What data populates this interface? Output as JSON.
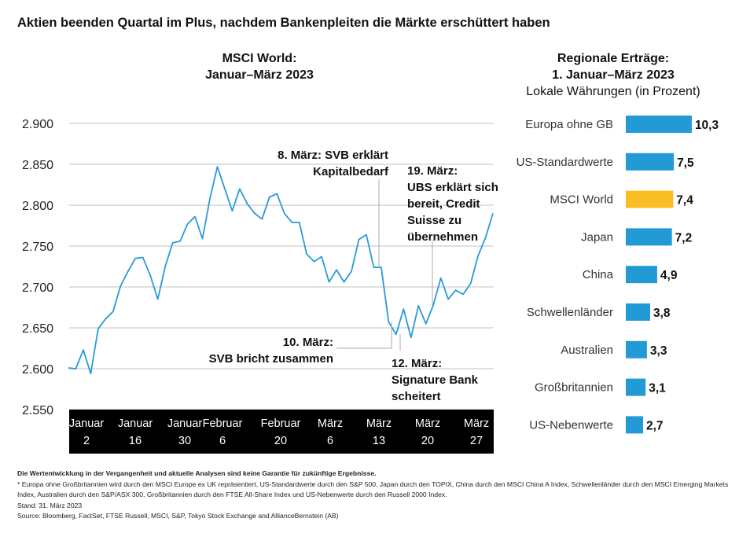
{
  "title": "Aktien beenden Quartal im Plus, nachdem Bankenpleiten die Märkte erschüttert haben",
  "chart_data": [
    {
      "type": "line",
      "title": "MSCI World:",
      "subtitle": "Januar–März 2023",
      "ylim": [
        2550,
        2900
      ],
      "yticks": [
        2900,
        2850,
        2800,
        2750,
        2700,
        2650,
        2600,
        2550
      ],
      "ytick_labels": [
        "2.900",
        "2.850",
        "2.800",
        "2.750",
        "2.700",
        "2.650",
        "2.600",
        "2.550"
      ],
      "xtick_labels": [
        [
          "Januar",
          "2"
        ],
        [
          "Januar",
          "16"
        ],
        [
          "Januar",
          "30"
        ],
        [
          "Februar",
          "6"
        ],
        [
          "Februar",
          "20"
        ],
        [
          "März",
          "6"
        ],
        [
          "März",
          "13"
        ],
        [
          "März",
          "20"
        ],
        [
          "März",
          "27"
        ]
      ],
      "grid": true,
      "color": "#2a9ad8",
      "values": [
        2601,
        2600,
        2623,
        2594,
        2649,
        2661,
        2670,
        2701,
        2719,
        2735,
        2736,
        2714,
        2685,
        2725,
        2754,
        2756,
        2777,
        2786,
        2759,
        2808,
        2847,
        2820,
        2793,
        2820,
        2802,
        2790,
        2783,
        2810,
        2814,
        2790,
        2779,
        2779,
        2740,
        2731,
        2737,
        2706,
        2721,
        2706,
        2719,
        2758,
        2764,
        2724,
        2724,
        2657,
        2642,
        2673,
        2638,
        2677,
        2655,
        2678,
        2711,
        2685,
        2696,
        2691,
        2704,
        2738,
        2760,
        2790
      ],
      "annotations": [
        {
          "lines": [
            "8. März: SVB erklärt",
            "Kapitalbedarf"
          ]
        },
        {
          "lines": [
            "10. März:",
            "SVB bricht zusammen"
          ]
        },
        {
          "lines": [
            "12. März:",
            "Signature Bank",
            "scheitert"
          ]
        },
        {
          "lines": [
            "19. März:",
            "UBS erklärt sich",
            "bereit, Credit",
            "Suisse zu",
            "übernehmen"
          ]
        }
      ]
    },
    {
      "type": "bar",
      "orientation": "horizontal",
      "title": "Regionale Erträge:",
      "subtitle": "1. Januar–März 2023",
      "unit_note": "Lokale Währungen (in Prozent)",
      "categories": [
        "Europa ohne GB",
        "US-Standardwerte",
        "MSCI World",
        "Japan",
        "China",
        "Schwellenländer",
        "Australien",
        "Großbritannien",
        "US-Nebenwerte"
      ],
      "values": [
        10.3,
        7.5,
        7.4,
        7.2,
        4.9,
        3.8,
        3.3,
        3.1,
        2.7
      ],
      "value_labels": [
        "10,3",
        "7,5",
        "7,4",
        "7,2",
        "4,9",
        "3,8",
        "3,3",
        "3,1",
        "2,7"
      ],
      "colors": [
        "#229ad6",
        "#229ad6",
        "#fbbd25",
        "#229ad6",
        "#229ad6",
        "#229ad6",
        "#229ad6",
        "#229ad6",
        "#229ad6"
      ]
    }
  ],
  "footer": {
    "disclaimer": "Die Wertentwicklung in der Vergangenheit und aktuelle Analysen sind keine Garantie für zukünftige Ergebnisse.",
    "note": "* Europa ohne Großbritannien wird durch den MSCI Europe ex UK repräsentiert, US-Standardwerte durch den S&P 500, Japan durch den TOPIX, China durch den MSCI China A Index, Schwellenländer durch den MSCI Emerging Markets Index, Australien durch den S&P/ASX 300, Großbritannien durch den FTSE All-Share Index und US-Nebenwerte durch den Russell 2000 Index.",
    "date": "Stand: 31. März 2023",
    "source": "Source: Bloomberg, FactSet, FTSE Russell, MSCI, S&P, Tokyo Stock Exchange and AllianceBernstein (AB)"
  }
}
